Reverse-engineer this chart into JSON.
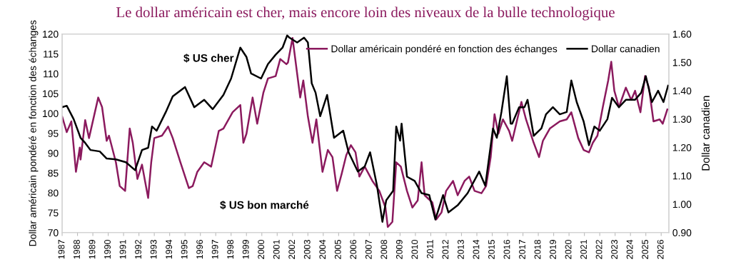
{
  "chart_data": {
    "type": "line",
    "title": "Le dollar américain est cher, mais encore loin des niveaux de la bulle technologique",
    "ylabel": "Dollar américain pondéré en fonction des échanges",
    "y2label": "Dollar canadien",
    "annotations": [
      "$ US cher",
      "$ US bon marché"
    ],
    "xlim": [
      1987,
      2026.5
    ],
    "xticks": [
      1987,
      1988,
      1989,
      1990,
      1991,
      1992,
      1993,
      1994,
      1995,
      1996,
      1997,
      1998,
      1999,
      2000,
      2001,
      2002,
      2003,
      2004,
      2005,
      2006,
      2007,
      2008,
      2009,
      2010,
      2011,
      2012,
      2013,
      2014,
      2015,
      2016,
      2017,
      2018,
      2019,
      2020,
      2021,
      2022,
      2023,
      2024,
      2025,
      2026
    ],
    "ylim": [
      70,
      120
    ],
    "yticks": [
      70,
      75,
      80,
      85,
      90,
      95,
      100,
      105,
      110,
      115,
      120
    ],
    "y2lim": [
      0.9,
      1.6
    ],
    "y2ticks": [
      {
        "value": 0.9,
        "label": "0.90"
      },
      {
        "value": 1.0,
        "label": "1.00"
      },
      {
        "value": 1.1,
        "label": "1.10"
      },
      {
        "value": 1.2,
        "label": "1.20"
      },
      {
        "value": 1.3,
        "label": "1.30"
      },
      {
        "value": 1.4,
        "label": "1.40"
      },
      {
        "value": 1.5,
        "label": "1.50"
      },
      {
        "value": 1.6,
        "label": "1.60"
      }
    ],
    "grid": false,
    "legend": "top right",
    "marker": "none",
    "line_style": "solid",
    "series": [
      {
        "name": "Dollar américain pondéré en fonction des échanges",
        "color": "#8b1a5e",
        "x": [
          1987.0,
          1987.3,
          1987.6,
          1987.9,
          1988.15,
          1988.2,
          1988.5,
          1988.75,
          1989.35,
          1989.6,
          1989.9,
          1990.05,
          1990.5,
          1990.75,
          1991.1,
          1991.4,
          1991.6,
          1991.9,
          1992.2,
          1992.6,
          1992.8,
          1993.0,
          1993.5,
          1993.9,
          1994.2,
          1994.7,
          1995.25,
          1995.5,
          1995.8,
          1996.25,
          1996.7,
          1997.2,
          1997.5,
          1998.1,
          1998.6,
          1998.8,
          1999.0,
          1999.4,
          1999.7,
          2000.1,
          2000.4,
          2000.9,
          2001.2,
          2001.6,
          2001.7,
          2002.0,
          2002.4,
          2002.5,
          2002.7,
          2003.0,
          2003.3,
          2003.55,
          2003.95,
          2004.3,
          2004.6,
          2004.9,
          2005.2,
          2005.5,
          2005.8,
          2006.1,
          2006.35,
          2006.7,
          2007.2,
          2007.65,
          2008.05,
          2008.2,
          2008.5,
          2008.75,
          2009.05,
          2009.45,
          2009.8,
          2010.15,
          2010.4,
          2010.6,
          2011.1,
          2011.35,
          2011.7,
          2012.0,
          2012.45,
          2012.75,
          2013.2,
          2013.5,
          2013.85,
          2014.3,
          2014.6,
          2014.9,
          2015.15,
          2015.4,
          2015.7,
          2016.1,
          2016.3,
          2016.6,
          2016.9,
          2017.2,
          2017.7,
          2018.05,
          2018.3,
          2018.75,
          2019.4,
          2019.85,
          2020.15,
          2020.35,
          2020.6,
          2020.95,
          2021.3,
          2021.55,
          2021.85,
          2022.2,
          2022.55,
          2022.75,
          2022.95,
          2023.25,
          2023.7,
          2024.05,
          2024.3,
          2024.65,
          2024.95,
          2025.2,
          2025.5,
          2025.9,
          2026.1,
          2026.4
        ],
        "values": [
          99.2,
          95.3,
          98,
          85.3,
          91.4,
          88.4,
          98.3,
          93.8,
          104,
          101.6,
          93.1,
          94.4,
          87.7,
          81.7,
          80.5,
          96.2,
          92.6,
          83.5,
          87.1,
          78.7,
          87.7,
          93.8,
          94.4,
          96.7,
          93.8,
          87.7,
          81.2,
          81.7,
          85.3,
          87.7,
          86.6,
          95.6,
          96.2,
          100.3,
          102.1,
          92.6,
          94.9,
          104,
          97.4,
          105.2,
          108.8,
          109.4,
          113.7,
          112.4,
          112.8,
          119,
          107,
          104,
          108.3,
          99.2,
          92.6,
          98.5,
          85.3,
          90.8,
          89,
          80.5,
          84.8,
          89.5,
          92,
          90.2,
          84.1,
          86.6,
          83,
          80.5,
          76.3,
          71.4,
          72.7,
          87.7,
          86.6,
          80.5,
          76.3,
          78.1,
          87.7,
          79.4,
          77.6,
          73.3,
          75.1,
          80.5,
          83,
          79.4,
          83,
          84.1,
          80.5,
          79.9,
          81.7,
          89,
          99.8,
          94.9,
          98.5,
          95.6,
          93.1,
          98,
          102.9,
          98.5,
          92.6,
          89,
          93.1,
          96.2,
          98,
          98.5,
          100.3,
          97.4,
          93.8,
          90.8,
          90.2,
          92.6,
          94.4,
          101.6,
          108.3,
          113,
          105.7,
          101.6,
          106.5,
          103.4,
          105.7,
          100.3,
          109.4,
          106.5,
          98,
          98.5,
          97.4,
          101
        ]
      },
      {
        "name": "Dollar canadien",
        "color": "#000000",
        "axis": "y2",
        "x": [
          1987.0,
          1987.3,
          1987.75,
          1988.2,
          1988.5,
          1988.85,
          1989.45,
          1989.9,
          1990.5,
          1991.15,
          1991.75,
          1992.2,
          1992.6,
          1992.85,
          1993.15,
          1993.75,
          1994.2,
          1995.0,
          1995.6,
          1996.25,
          1996.8,
          1997.5,
          1998.0,
          1998.6,
          1999.0,
          1999.3,
          1999.95,
          2000.4,
          2000.9,
          2001.35,
          2001.65,
          2001.8,
          2002.3,
          2002.75,
          2003.0,
          2003.25,
          2003.5,
          2003.8,
          2004.25,
          2004.7,
          2005.3,
          2005.65,
          2006.25,
          2006.7,
          2007.05,
          2007.5,
          2007.85,
          2008.1,
          2008.55,
          2008.75,
          2009.0,
          2009.1,
          2009.45,
          2009.95,
          2010.4,
          2010.9,
          2011.3,
          2011.8,
          2012.15,
          2012.75,
          2013.4,
          2014.15,
          2014.55,
          2015.05,
          2015.3,
          2015.6,
          2015.95,
          2016.2,
          2016.3,
          2016.75,
          2017.1,
          2017.3,
          2017.7,
          2018.2,
          2018.5,
          2018.95,
          2019.4,
          2019.85,
          2020.15,
          2020.5,
          2020.95,
          2021.3,
          2021.65,
          2022.0,
          2022.5,
          2022.8,
          2023.25,
          2023.7,
          2024.3,
          2024.7,
          2025.0,
          2025.4,
          2025.8,
          2026.15,
          2026.45
        ],
        "values": [
          1.342,
          1.347,
          1.3,
          1.234,
          1.216,
          1.191,
          1.186,
          1.161,
          1.158,
          1.148,
          1.12,
          1.191,
          1.199,
          1.274,
          1.259,
          1.325,
          1.38,
          1.413,
          1.342,
          1.368,
          1.335,
          1.385,
          1.443,
          1.552,
          1.519,
          1.461,
          1.443,
          1.494,
          1.527,
          1.552,
          1.595,
          1.587,
          1.57,
          1.587,
          1.57,
          1.426,
          1.393,
          1.31,
          1.385,
          1.234,
          1.259,
          1.183,
          1.115,
          1.133,
          1.183,
          1.065,
          0.938,
          1.014,
          1.047,
          1.274,
          1.224,
          1.284,
          1.097,
          1.082,
          1.039,
          1.032,
          0.946,
          1.032,
          0.971,
          0.996,
          1.039,
          1.115,
          1.065,
          1.267,
          1.234,
          1.325,
          1.451,
          1.284,
          1.284,
          1.342,
          1.342,
          1.368,
          1.241,
          1.267,
          1.317,
          1.342,
          1.317,
          1.325,
          1.436,
          1.36,
          1.292,
          1.208,
          1.274,
          1.259,
          1.3,
          1.375,
          1.342,
          1.368,
          1.368,
          1.393,
          1.451,
          1.36,
          1.4,
          1.36,
          1.418
        ]
      }
    ]
  }
}
